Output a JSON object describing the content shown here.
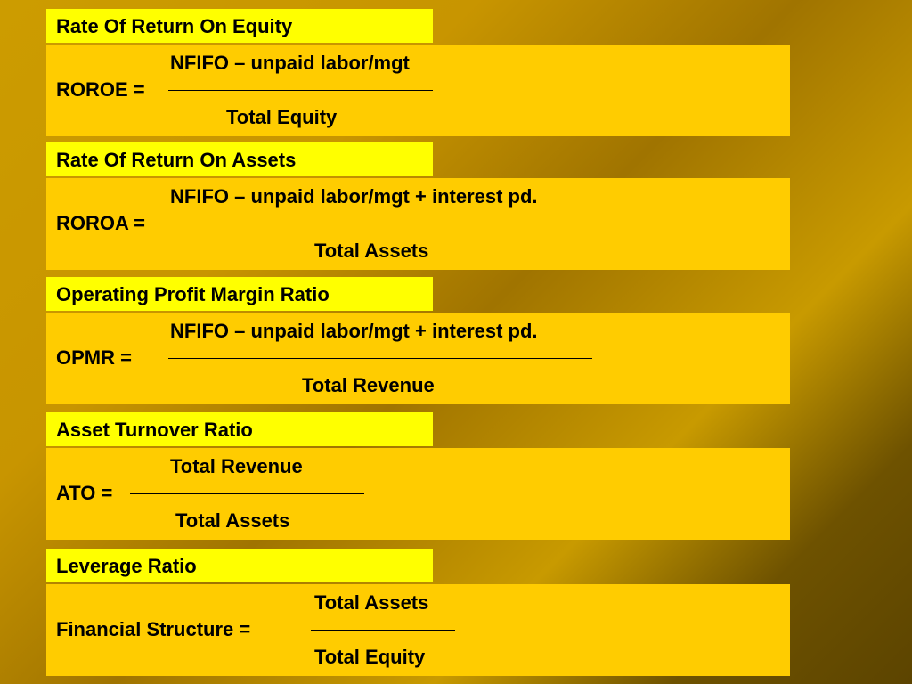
{
  "sections": [
    {
      "title": "Rate Of Return On Equity",
      "lhs": "ROROE =",
      "numerator": "NFIFO – unpaid labor/mgt",
      "denominator": "Total Equity"
    },
    {
      "title": "Rate Of Return On Assets",
      "lhs": "ROROA =",
      "numerator": "NFIFO – unpaid labor/mgt + interest pd.",
      "denominator": "Total Assets"
    },
    {
      "title": "Operating Profit Margin Ratio",
      "lhs": "OPMR =",
      "numerator": "NFIFO – unpaid labor/mgt + interest pd.",
      "denominator": "Total Revenue"
    },
    {
      "title": "Asset Turnover Ratio",
      "lhs": "ATO =",
      "numerator": "Total Revenue",
      "denominator": "Total Assets"
    },
    {
      "title": "Leverage Ratio",
      "lhs": "Financial Structure =",
      "numerator": "Total Assets",
      "denominator": "Total Equity"
    }
  ]
}
